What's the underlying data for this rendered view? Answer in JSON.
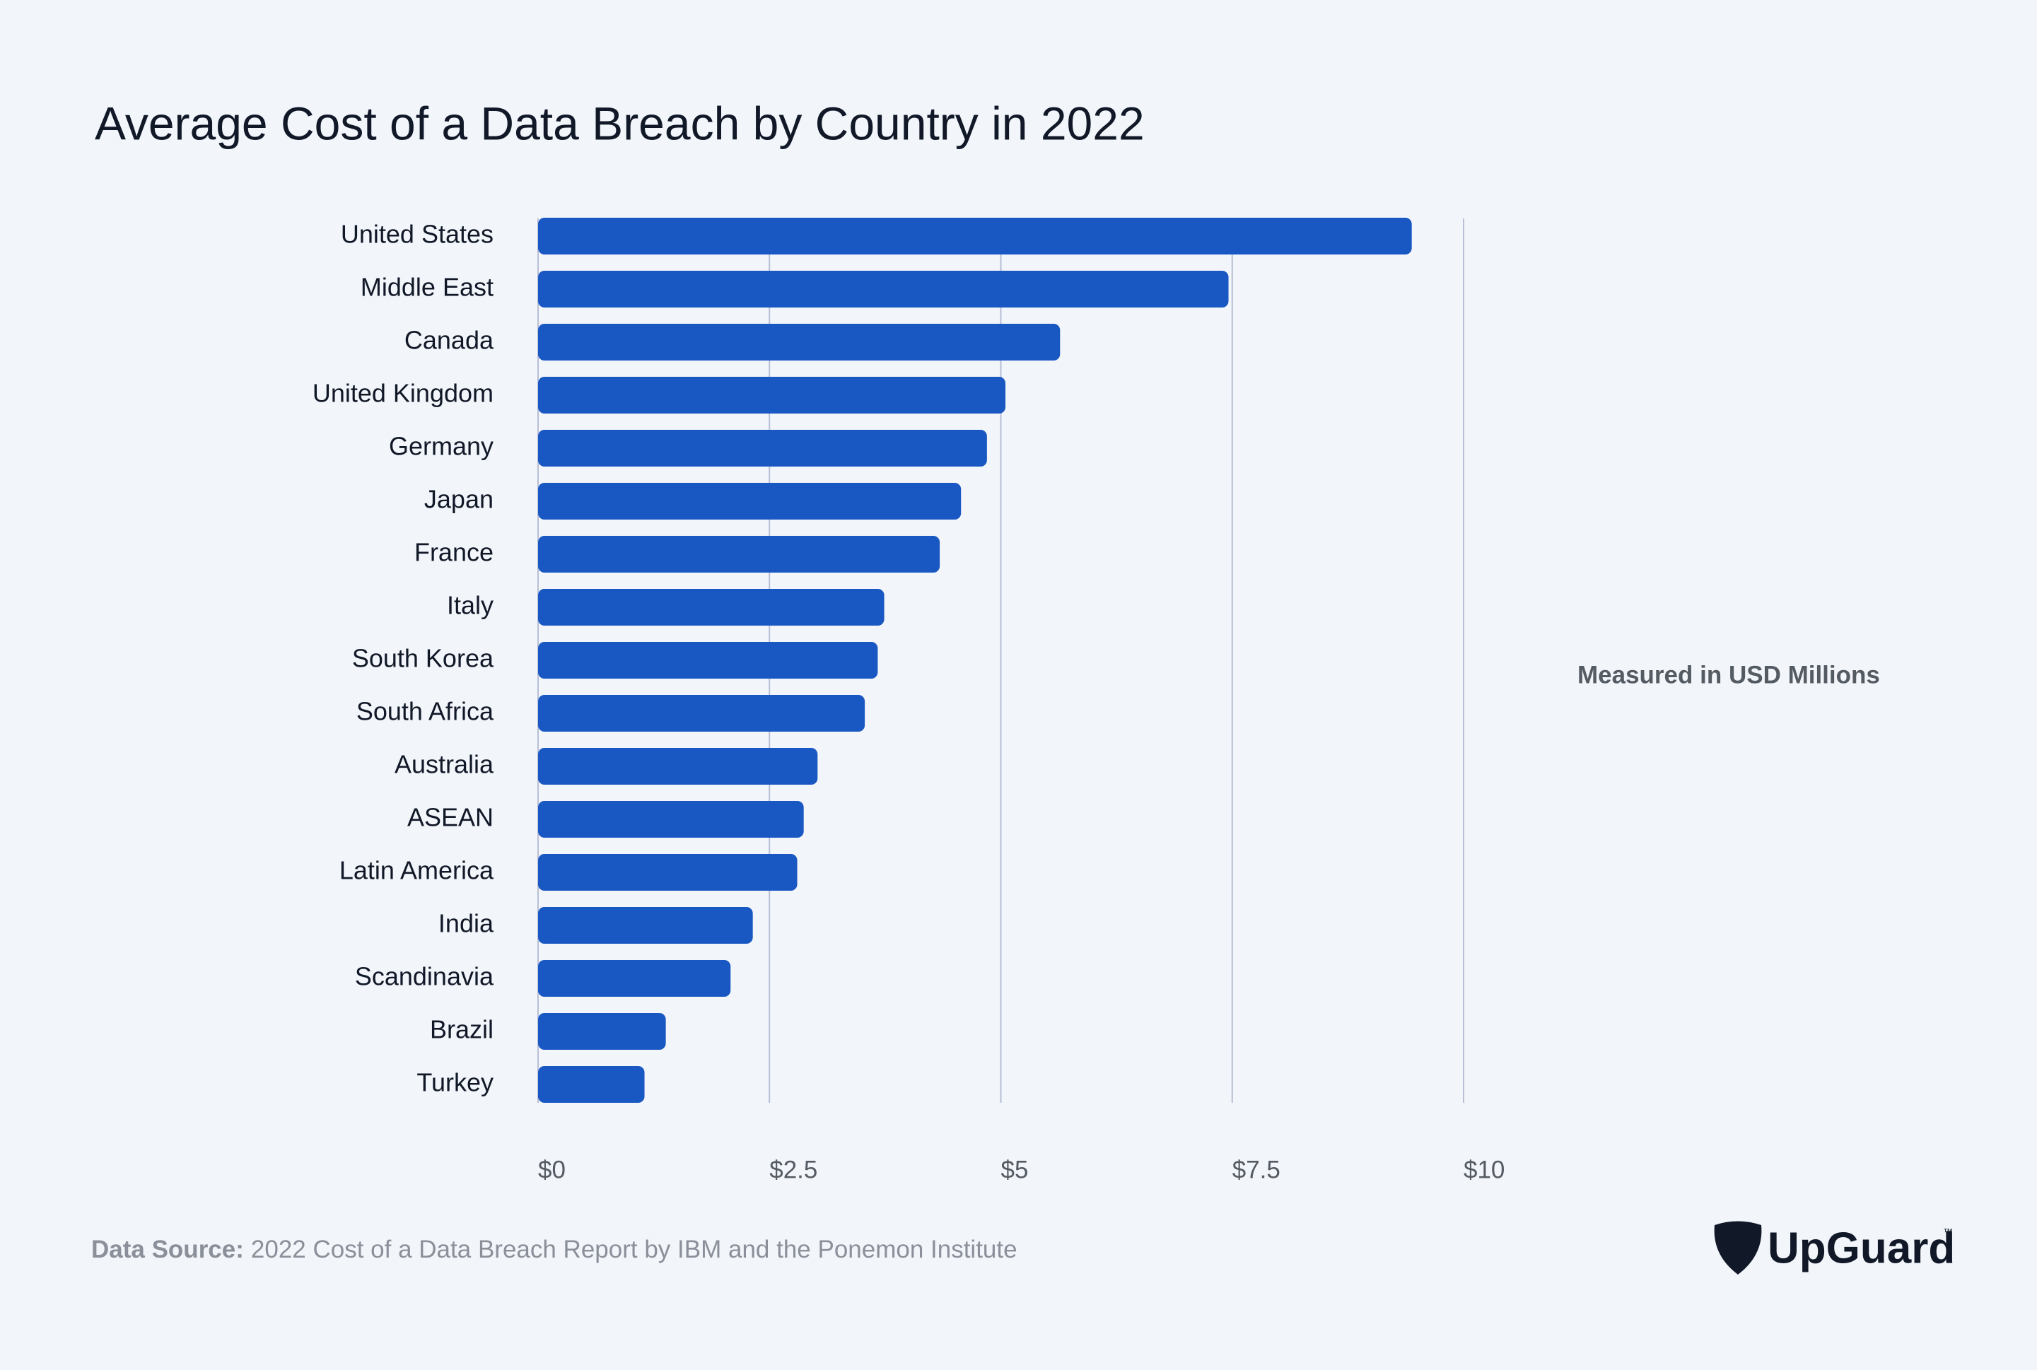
{
  "chart_data": {
    "type": "hbar",
    "title": "Average Cost of a Data Breach by Country in 2022",
    "categories": [
      "United States",
      "Middle East",
      "Canada",
      "United Kingdom",
      "Germany",
      "Japan",
      "France",
      "Italy",
      "South Korea",
      "South Africa",
      "Australia",
      "ASEAN",
      "Latin America",
      "India",
      "Scandinavia",
      "Brazil",
      "Turkey"
    ],
    "values": [
      9.44,
      7.46,
      5.64,
      5.05,
      4.85,
      4.57,
      4.34,
      3.74,
      3.67,
      3.53,
      3.02,
      2.87,
      2.8,
      2.32,
      2.08,
      1.38,
      1.15
    ],
    "color": "#1957c2",
    "xlim": [
      0,
      10
    ],
    "xticks": [
      {
        "value": 0,
        "label": "$0"
      },
      {
        "value": 2.5,
        "label": "$2.5"
      },
      {
        "value": 5,
        "label": "$5"
      },
      {
        "value": 7.5,
        "label": "$7.5"
      },
      {
        "value": 10,
        "label": "$10"
      }
    ],
    "grid": true,
    "annotation": "Measured in USD Millions",
    "source_label": "Data Source:",
    "source": "2022 Cost of a Data Breach Report by IBM and the Ponemon Institute",
    "logo": "UpGuard",
    "logo_mark": "™"
  }
}
